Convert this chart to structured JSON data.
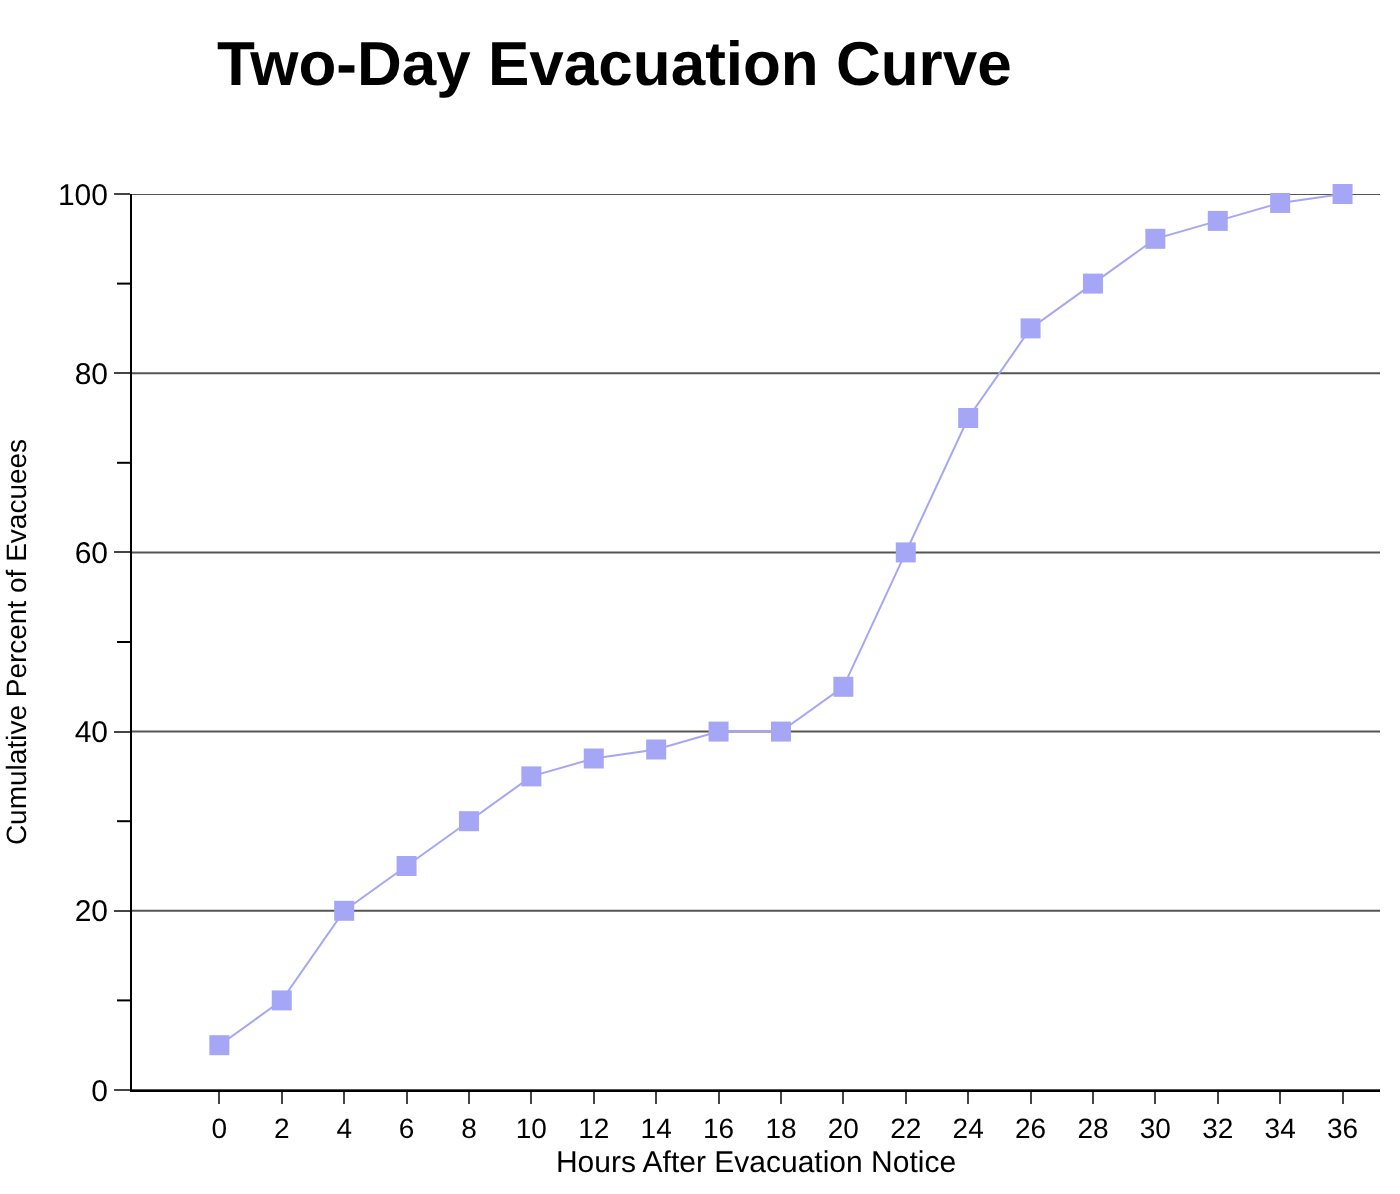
{
  "chart_data": {
    "type": "line",
    "title": "Two-Day Evacuation Curve",
    "xlabel": "Hours After Evacuation Notice",
    "ylabel": "Cumulative Percent of Evacuees",
    "x": [
      0,
      2,
      4,
      6,
      8,
      10,
      12,
      14,
      16,
      18,
      20,
      22,
      24,
      26,
      28,
      30,
      32,
      34,
      36
    ],
    "series": [
      {
        "color": "#a6a6f6",
        "values": [
          5,
          10,
          20,
          25,
          30,
          35,
          37,
          38,
          40,
          40,
          45,
          60,
          75,
          85,
          90,
          95,
          97,
          99,
          100
        ]
      }
    ],
    "xlim": [
      -2.8,
      37.2
    ],
    "xticks": [
      0,
      2,
      4,
      6,
      8,
      10,
      12,
      14,
      16,
      18,
      20,
      22,
      24,
      26,
      28,
      30,
      32,
      34,
      36
    ],
    "ylim": [
      0,
      100
    ],
    "yticks": [
      0,
      {
        "value": 10,
        "label": null
      },
      20,
      {
        "value": 30,
        "label": null
      },
      40,
      {
        "value": 50,
        "label": null
      },
      60,
      {
        "value": 70,
        "label": null
      },
      80,
      {
        "value": 90,
        "label": null
      },
      100
    ],
    "grid": "y",
    "marker": "square",
    "line_style": "solid",
    "legend": false
  }
}
